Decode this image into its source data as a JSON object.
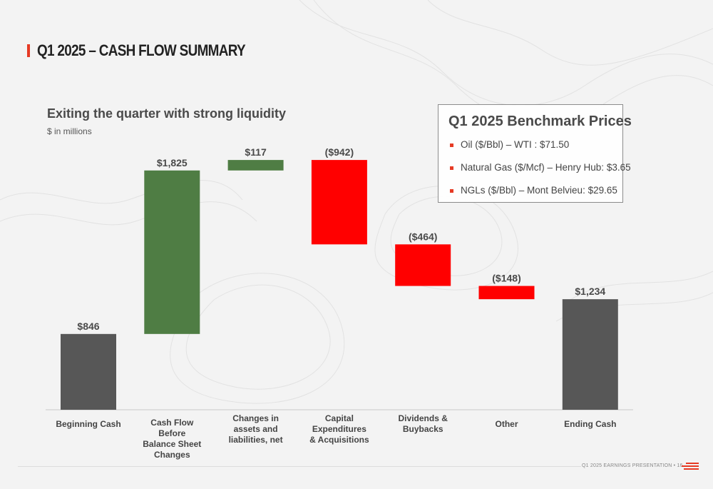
{
  "header": {
    "title": "Q1 2025 – CASH FLOW SUMMARY"
  },
  "subtitle": "Exiting the quarter with strong liquidity",
  "units_note": "$ in millions",
  "colors": {
    "positive": "#4f7d44",
    "negative": "#ff0000",
    "total": "#575757",
    "accent": "#e63a24"
  },
  "benchmark": {
    "title": "Q1 2025 Benchmark Prices",
    "items": [
      "Oil ($/Bbl) – WTI : $71.50",
      "Natural Gas ($/Mcf) – Henry Hub: $3.65",
      "NGLs ($/Bbl) – Mont Belvieu: $29.65"
    ]
  },
  "footer": {
    "text": "Q1 2025 EARNINGS PRESENTATION  •  16"
  },
  "chart_data": {
    "type": "bar",
    "subtype": "waterfall",
    "title": "Exiting the quarter with strong liquidity",
    "ylabel": "$ in millions",
    "categories": [
      [
        "Beginning Cash"
      ],
      [
        "Cash Flow",
        "Before",
        "Balance Sheet",
        "Changes"
      ],
      [
        "Changes in",
        "assets and",
        "liabilities, net"
      ],
      [
        "Capital",
        "Expenditures",
        "& Acquisitions"
      ],
      [
        "Dividends &",
        "Buybacks"
      ],
      [
        "Other"
      ],
      [
        "Ending Cash"
      ]
    ],
    "values": [
      846,
      1825,
      117,
      -942,
      -464,
      -148,
      1234
    ],
    "kinds": [
      "total",
      "delta",
      "delta",
      "delta",
      "delta",
      "delta",
      "total"
    ],
    "labels": [
      "$846",
      "$1,825",
      "$117",
      "($942)",
      "($464)",
      "($148)",
      "$1,234"
    ]
  }
}
